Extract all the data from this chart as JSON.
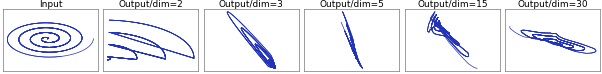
{
  "titles": [
    "Input",
    "Output/dim=2",
    "Output/dim=3",
    "Output/dim=5",
    "Output/dim=15",
    "Output/dim=30"
  ],
  "dims": [
    0,
    2,
    3,
    5,
    15,
    30
  ],
  "line_color": "#2233bb",
  "linewidth": 0.5,
  "n_turns": 4,
  "n_lines": 20,
  "figsize": [
    6.02,
    0.74
  ],
  "dpi": 100,
  "title_fontsize": 6.5,
  "bg_color": "#ffffff"
}
